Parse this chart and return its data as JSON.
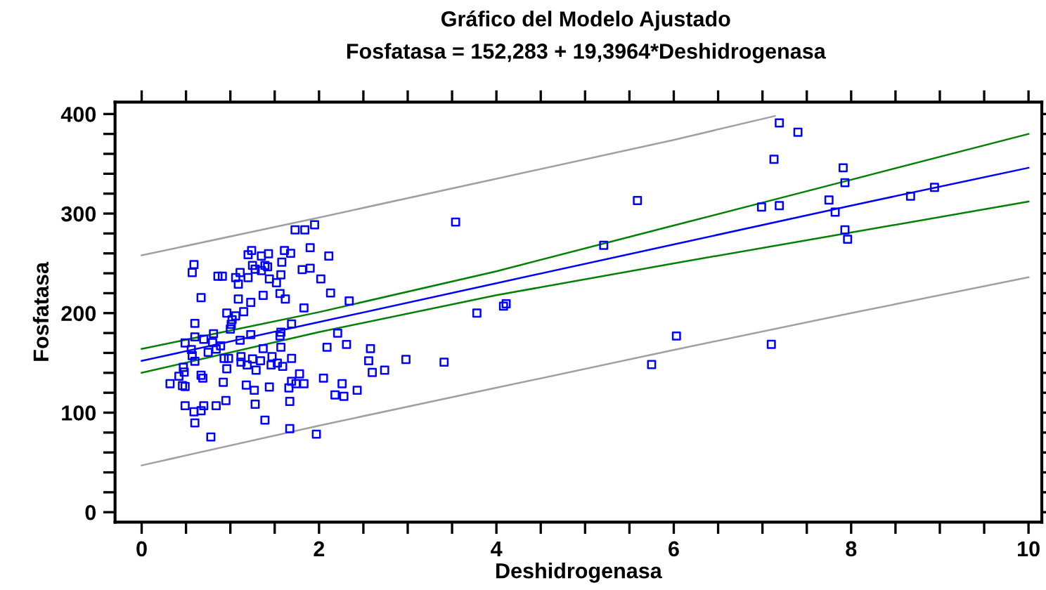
{
  "chart_data": {
    "type": "scatter",
    "title": "Gráfico del Modelo Ajustado",
    "subtitle": "Fosfatasa = 152,283 + 19,3964*Deshidrogenasa",
    "xlabel": "Deshidrogenasa",
    "ylabel": "Fosfatasa",
    "grid": false,
    "legend": false,
    "xlim": [
      -0.3,
      10.15
    ],
    "ylim": [
      -10,
      412
    ],
    "xticks": [
      0,
      {
        "value": 0.5,
        "label": null
      },
      {
        "value": 1,
        "label": null
      },
      {
        "value": 1.5,
        "label": null
      },
      2,
      {
        "value": 2.5,
        "label": null
      },
      {
        "value": 3,
        "label": null
      },
      {
        "value": 3.5,
        "label": null
      },
      4,
      {
        "value": 4.5,
        "label": null
      },
      {
        "value": 5,
        "label": null
      },
      {
        "value": 5.5,
        "label": null
      },
      6,
      {
        "value": 6.5,
        "label": null
      },
      {
        "value": 7,
        "label": null
      },
      {
        "value": 7.5,
        "label": null
      },
      8,
      {
        "value": 8.5,
        "label": null
      },
      {
        "value": 9,
        "label": null
      },
      {
        "value": 9.5,
        "label": null
      },
      10
    ],
    "yticks": [
      0,
      {
        "value": 20,
        "label": null
      },
      {
        "value": 40,
        "label": null
      },
      {
        "value": 60,
        "label": null
      },
      {
        "value": 80,
        "label": null
      },
      100,
      {
        "value": 120,
        "label": null
      },
      {
        "value": 140,
        "label": null
      },
      {
        "value": 160,
        "label": null
      },
      {
        "value": 180,
        "label": null
      },
      200,
      {
        "value": 220,
        "label": null
      },
      {
        "value": 240,
        "label": null
      },
      {
        "value": 260,
        "label": null
      },
      {
        "value": 280,
        "label": null
      },
      300,
      {
        "value": 320,
        "label": null
      },
      {
        "value": 340,
        "label": null
      },
      {
        "value": 360,
        "label": null
      },
      {
        "value": 380,
        "label": null
      },
      400
    ],
    "series": [
      {
        "type": "line",
        "marker": "none",
        "color": "#a0a0a0",
        "x": [
          0,
          2,
          4,
          6,
          7.14
        ],
        "values": [
          258,
          296,
          335,
          374,
          398
        ]
      },
      {
        "type": "line",
        "marker": "none",
        "color": "#008000",
        "x": [
          0,
          2,
          4,
          6,
          8,
          10
        ],
        "values": [
          164,
          201,
          242,
          288,
          334,
          380
        ]
      },
      {
        "type": "line",
        "marker": "none",
        "color": "#0000ff",
        "x": [
          0,
          2,
          4,
          6,
          8,
          10
        ],
        "values": [
          152,
          191,
          230,
          269,
          308,
          346
        ]
      },
      {
        "type": "line",
        "marker": "none",
        "color": "#008000",
        "x": [
          0,
          2,
          4,
          6,
          8,
          10
        ],
        "values": [
          140,
          181,
          218,
          250,
          281,
          312
        ]
      },
      {
        "type": "line",
        "marker": "none",
        "color": "#a0a0a0",
        "x": [
          0,
          2,
          4,
          6,
          8,
          10
        ],
        "values": [
          47,
          87,
          125,
          163,
          200,
          236
        ]
      },
      {
        "marker": "square",
        "color": "#0000ff",
        "x": [
          1.73,
          1.84,
          1.95,
          1.9,
          1.24,
          1.2,
          1.35,
          1.43,
          1.61,
          1.68,
          2.11,
          0.59,
          0.57,
          0.86,
          0.91,
          1.11,
          1.06,
          1.2,
          1.09,
          1.25,
          1.28,
          1.35,
          1.39,
          1.42,
          1.58,
          1.57,
          1.81,
          1.9,
          2.02,
          1.44,
          1.52,
          0.67,
          1.09,
          1.23,
          1.37,
          1.56,
          1.62,
          2.13,
          2.34,
          1.83,
          0.96,
          1.06,
          1.15,
          1.02,
          1.01,
          1.0,
          0.6,
          0.6,
          0.81,
          1.23,
          1.69,
          1.57,
          1.56,
          2.21,
          0.49,
          0.56,
          0.7,
          0.8,
          0.84,
          0.89,
          1.11,
          1.37,
          1.57,
          2.09,
          2.31,
          2.58,
          0.57,
          0.6,
          0.75,
          0.93,
          0.98,
          1.12,
          1.12,
          1.25,
          1.34,
          1.47,
          1.53,
          1.59,
          1.69,
          2.56,
          2.98,
          0.47,
          0.48,
          0.42,
          0.67,
          0.69,
          0.96,
          1.19,
          1.29,
          1.46,
          1.78,
          2.6,
          2.74,
          0.32,
          0.46,
          0.49,
          0.92,
          1.18,
          1.27,
          1.44,
          1.66,
          1.69,
          1.74,
          1.83,
          2.05,
          2.26,
          2.18,
          2.28,
          2.43,
          0.49,
          0.7,
          0.84,
          0.95,
          1.28,
          1.67,
          0.59,
          0.67,
          0.6,
          1.39,
          1.67,
          1.97,
          0.78,
          7.19,
          7.4,
          7.13,
          7.91,
          7.93,
          5.59,
          6.99,
          7.19,
          7.75,
          7.82,
          8.67,
          8.94,
          3.54,
          5.21,
          7.93,
          7.96,
          3.78,
          4.08,
          4.11,
          6.03,
          7.1,
          3.41,
          5.75
        ],
        "values": [
          283.6,
          283.6,
          288.7,
          265.7,
          262.9,
          258.7,
          257.3,
          259.6,
          262.9,
          260.1,
          257.3,
          248.8,
          240.8,
          237.1,
          237.1,
          240.8,
          235.7,
          235.7,
          229.1,
          247.9,
          244.1,
          242.7,
          247.9,
          246.5,
          251.2,
          238.5,
          243.7,
          245.1,
          234.3,
          234.3,
          230.5,
          215.5,
          214.1,
          210.8,
          217.8,
          219.7,
          214.1,
          220.2,
          212.2,
          205.2,
          200.0,
          197.2,
          201.4,
          193.4,
          188.7,
          184.0,
          189.7,
          176.1,
          179.3,
          178.4,
          189.2,
          180.8,
          177.0,
          179.8,
          170.0,
          163.4,
          173.7,
          170.4,
          163.8,
          167.1,
          172.8,
          164.3,
          165.7,
          165.7,
          168.5,
          164.3,
          157.3,
          151.6,
          160.6,
          154.5,
          154.5,
          156.3,
          150.7,
          154.0,
          152.1,
          156.3,
          149.8,
          146.5,
          154.5,
          152.1,
          153.5,
          145.5,
          140.8,
          136.6,
          137.6,
          134.7,
          144.1,
          147.9,
          142.7,
          147.9,
          139.0,
          140.4,
          142.7,
          129.1,
          127.2,
          126.3,
          130.5,
          127.7,
          122.5,
          125.8,
          124.9,
          131.5,
          129.1,
          129.1,
          134.7,
          129.1,
          117.8,
          116.4,
          122.5,
          107.0,
          107.0,
          107.0,
          112.2,
          108.5,
          111.3,
          100.9,
          101.9,
          89.7,
          92.5,
          84.0,
          78.4,
          75.6,
          391.1,
          381.7,
          354.5,
          346,
          331,
          313.1,
          306.6,
          308.0,
          313.6,
          301.4,
          317.4,
          326.3,
          291.5,
          268.1,
          283.6,
          274.2,
          200,
          207,
          209.4,
          177,
          168.6,
          150.7,
          148.3
        ]
      }
    ]
  }
}
